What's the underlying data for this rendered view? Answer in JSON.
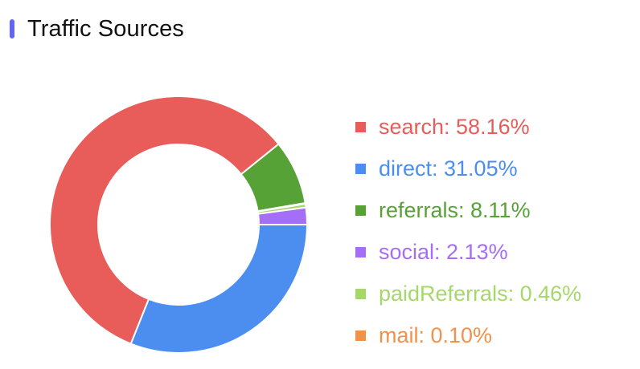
{
  "header": {
    "title": "Traffic Sources",
    "accent_color": "#6366f1"
  },
  "chart_data": {
    "type": "pie",
    "variant": "donut",
    "title": "Traffic Sources",
    "legend_position": "right",
    "slices": [
      {
        "name": "search",
        "value": 58.16,
        "color": "#e85c5a"
      },
      {
        "name": "direct",
        "value": 31.05,
        "color": "#4b8ef0"
      },
      {
        "name": "referrals",
        "value": 8.11,
        "color": "#57a237"
      },
      {
        "name": "social",
        "value": 2.13,
        "color": "#a56ef6"
      },
      {
        "name": "paidReferrals",
        "value": 0.46,
        "color": "#a6d76b"
      },
      {
        "name": "mail",
        "value": 0.1,
        "color": "#f0924c"
      }
    ],
    "legend_labels": [
      "search: 58.16%",
      "direct: 31.05%",
      "referrals: 8.11%",
      "social: 2.13%",
      "paidReferrals: 0.46%",
      "mail: 0.10%"
    ]
  }
}
